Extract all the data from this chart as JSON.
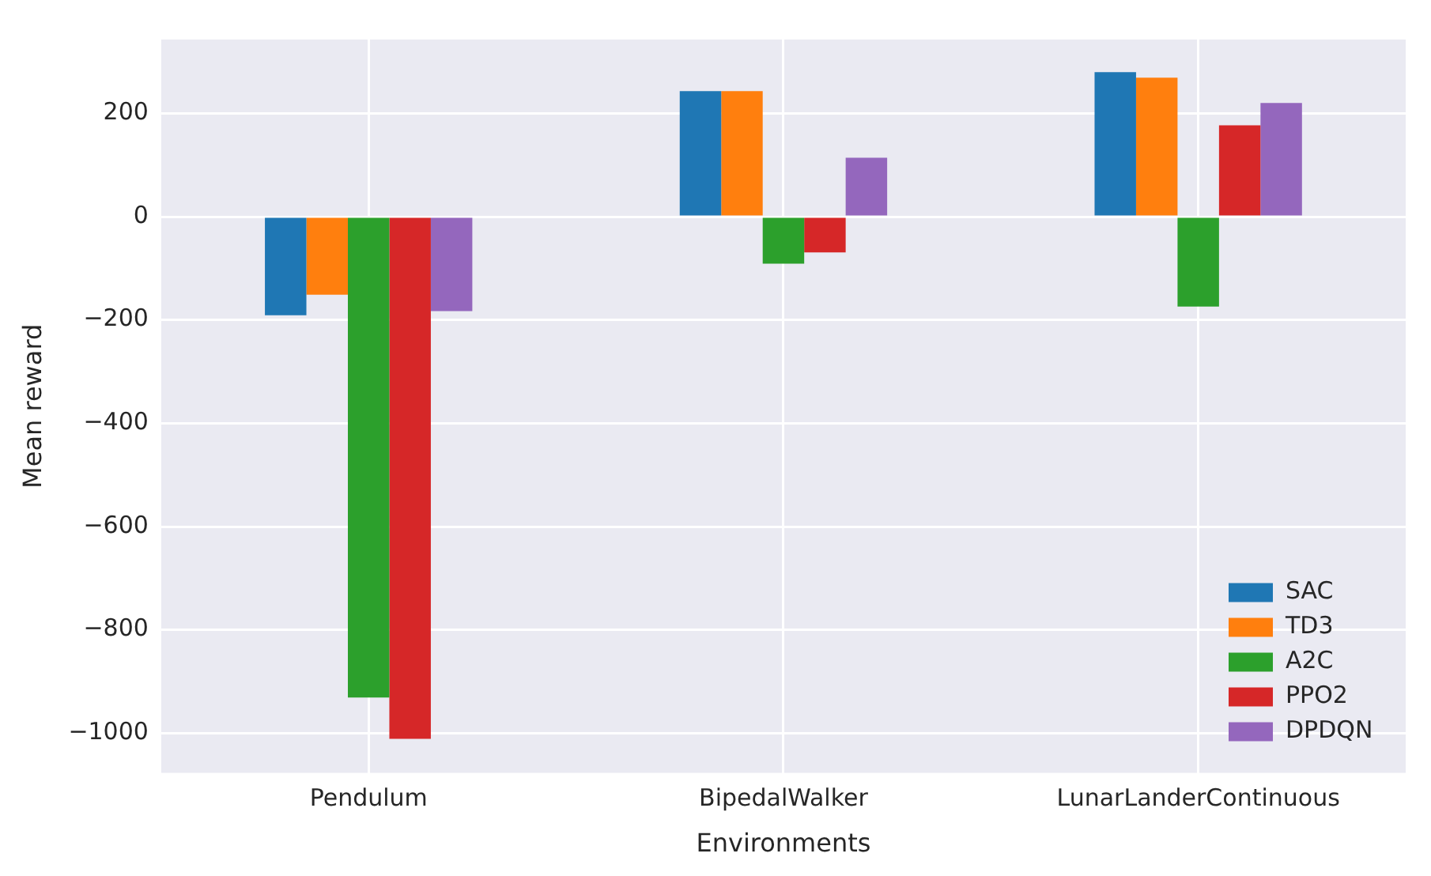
{
  "chart_data": {
    "type": "bar",
    "xlabel": "Environments",
    "ylabel": "Mean reward",
    "categories": [
      "Pendulum",
      "BipedalWalker",
      "LunarLanderContinuous"
    ],
    "series": [
      {
        "name": "SAC",
        "color": "#1f77b4",
        "values": [
          -191,
          243,
          280
        ]
      },
      {
        "name": "TD3",
        "color": "#ff7f0e",
        "values": [
          -151,
          243,
          269
        ]
      },
      {
        "name": "A2C",
        "color": "#2ca02c",
        "values": [
          -931,
          -91,
          -174
        ]
      },
      {
        "name": "PPO2",
        "color": "#d62728",
        "values": [
          -1011,
          -69,
          177
        ]
      },
      {
        "name": "DPDQN",
        "color": "#9467bd",
        "values": [
          -183,
          114,
          220
        ]
      }
    ],
    "ylim": [
      -1077,
      343
    ],
    "yticks": [
      -1000,
      -800,
      -600,
      -400,
      -200,
      0,
      200
    ],
    "grid": true,
    "legend": "bottom right"
  }
}
